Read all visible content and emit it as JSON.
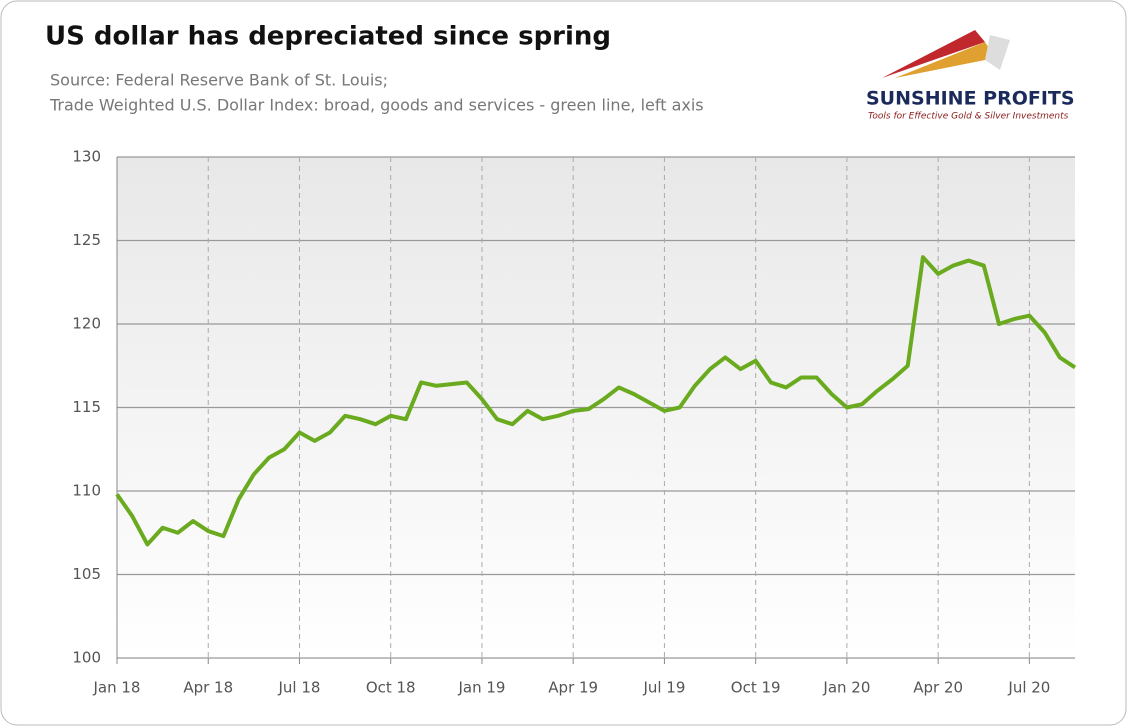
{
  "chart_data": {
    "type": "line",
    "title": "US dollar has depreciated since spring",
    "subtitle": [
      "Source: Federal Reserve Bank of St. Louis;",
      "Trade Weighted U.S. Dollar Index: broad, goods and services - green line, left axis"
    ],
    "categories": [
      "Jan 18",
      null,
      null,
      null,
      null,
      null,
      "Apr 18",
      null,
      null,
      null,
      null,
      null,
      "Jul 18",
      null,
      null,
      null,
      null,
      null,
      "Oct 18",
      null,
      null,
      null,
      null,
      null,
      "Jan 19",
      null,
      null,
      null,
      null,
      null,
      "Apr 19",
      null,
      null,
      null,
      null,
      null,
      "Jul 19",
      null,
      null,
      null,
      null,
      null,
      "Oct 19",
      null,
      null,
      null,
      null,
      null,
      "Jan 20",
      null,
      null,
      null,
      null,
      null,
      "Apr 20",
      null,
      null,
      null,
      null,
      null,
      "Jul 20",
      null,
      null,
      null
    ],
    "values": [
      109.8,
      108.5,
      106.8,
      107.8,
      107.5,
      108.2,
      107.6,
      107.3,
      109.5,
      111,
      112,
      112.5,
      113.5,
      113,
      113.5,
      114.5,
      114.3,
      114,
      114.5,
      114.3,
      116.5,
      116.3,
      116.4,
      116.5,
      115.5,
      114.3,
      114,
      114.8,
      114.3,
      114.5,
      114.8,
      114.9,
      115.5,
      116.2,
      115.8,
      115.3,
      114.8,
      115,
      116.3,
      117.3,
      118,
      117.3,
      117.8,
      116.5,
      116.2,
      116.8,
      116.8,
      115.8,
      115,
      115.2,
      116,
      116.7,
      117.5,
      124,
      123,
      123.5,
      123.8,
      123.5,
      120,
      120.3,
      120.5,
      119.5,
      118,
      117.4
    ],
    "color": "#6aaa1e",
    "ylim": [
      100,
      130
    ],
    "yticks": [
      100,
      105,
      110,
      115,
      120,
      125,
      130
    ],
    "grid": true
  },
  "logo": {
    "name": "SUNSHINE PROFITS",
    "tagline": "Tools for Effective Gold & Silver Investments"
  }
}
